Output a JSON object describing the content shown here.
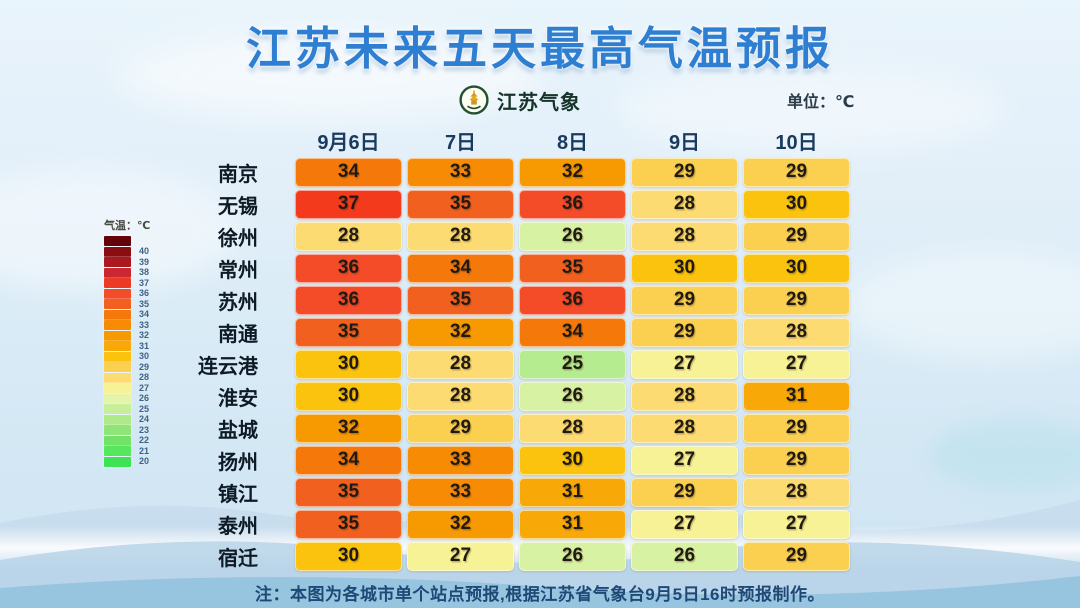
{
  "title": "江苏未来五天最高气温预报",
  "header": {
    "logo_text": "江苏气象",
    "unit_label": "单位：℃"
  },
  "legend": {
    "label": "气温：℃",
    "items": [
      {
        "label": "",
        "color": "#640309"
      },
      {
        "label": "40",
        "color": "#8a0d12"
      },
      {
        "label": "39",
        "color": "#a9191d"
      },
      {
        "label": "38",
        "color": "#ca2730"
      },
      {
        "label": "37",
        "color": "#ec3a24"
      },
      {
        "label": "36",
        "color": "#f24c2b"
      },
      {
        "label": "35",
        "color": "#f2601f"
      },
      {
        "label": "34",
        "color": "#f5790a"
      },
      {
        "label": "33",
        "color": "#f78c04"
      },
      {
        "label": "32",
        "color": "#f79900"
      },
      {
        "label": "31",
        "color": "#f8a907"
      },
      {
        "label": "30",
        "color": "#fbc30d"
      },
      {
        "label": "29",
        "color": "#fbd051"
      },
      {
        "label": "28",
        "color": "#fcdb72"
      },
      {
        "label": "27",
        "color": "#f7f295"
      },
      {
        "label": "26",
        "color": "#e4f4ab"
      },
      {
        "label": "25",
        "color": "#c7ee9b"
      },
      {
        "label": "24",
        "color": "#aeea8a"
      },
      {
        "label": "23",
        "color": "#90e579"
      },
      {
        "label": "22",
        "color": "#72e268"
      },
      {
        "label": "21",
        "color": "#55e75c"
      },
      {
        "label": "20",
        "color": "#3ee355"
      }
    ]
  },
  "palette": {
    "25": "#b6ec90",
    "26": "#d8f2a3",
    "27": "#f7f295",
    "28": "#fcdb72",
    "29": "#fbd051",
    "30": "#fbc30d",
    "31": "#f8a907",
    "32": "#f79900",
    "33": "#f78c04",
    "34": "#f5790a",
    "35": "#f2601f",
    "36": "#f44b28",
    "37": "#f43a1c"
  },
  "table": {
    "date_headers": [
      "9月6日",
      "7日",
      "8日",
      "9日",
      "10日"
    ],
    "rows": [
      {
        "city": "南京",
        "temps": [
          34,
          33,
          32,
          29,
          29
        ]
      },
      {
        "city": "无锡",
        "temps": [
          37,
          35,
          36,
          28,
          30
        ]
      },
      {
        "city": "徐州",
        "temps": [
          28,
          28,
          26,
          28,
          29
        ]
      },
      {
        "city": "常州",
        "temps": [
          36,
          34,
          35,
          30,
          30
        ]
      },
      {
        "city": "苏州",
        "temps": [
          36,
          35,
          36,
          29,
          29
        ]
      },
      {
        "city": "南通",
        "temps": [
          35,
          32,
          34,
          29,
          28
        ]
      },
      {
        "city": "连云港",
        "temps": [
          30,
          28,
          25,
          27,
          27
        ]
      },
      {
        "city": "淮安",
        "temps": [
          30,
          28,
          26,
          28,
          31
        ]
      },
      {
        "city": "盐城",
        "temps": [
          32,
          29,
          28,
          28,
          29
        ]
      },
      {
        "city": "扬州",
        "temps": [
          34,
          33,
          30,
          27,
          29
        ]
      },
      {
        "city": "镇江",
        "temps": [
          35,
          33,
          31,
          29,
          28
        ]
      },
      {
        "city": "泰州",
        "temps": [
          35,
          32,
          31,
          27,
          27
        ]
      },
      {
        "city": "宿迁",
        "temps": [
          30,
          27,
          26,
          26,
          29
        ]
      }
    ]
  },
  "note": "注：本图为各城市单个站点预报,根据江苏省气象台9月5日16时预报制作。",
  "chart_data": {
    "type": "heatmap",
    "title": "江苏未来五天最高气温预报",
    "unit": "℃",
    "columns": [
      "9月6日",
      "7日",
      "8日",
      "9日",
      "10日"
    ],
    "rows": [
      "南京",
      "无锡",
      "徐州",
      "常州",
      "苏州",
      "南通",
      "连云港",
      "淮安",
      "盐城",
      "扬州",
      "镇江",
      "泰州",
      "宿迁"
    ],
    "values": [
      [
        34,
        33,
        32,
        29,
        29
      ],
      [
        37,
        35,
        36,
        28,
        30
      ],
      [
        28,
        28,
        26,
        28,
        29
      ],
      [
        36,
        34,
        35,
        30,
        30
      ],
      [
        36,
        35,
        36,
        29,
        29
      ],
      [
        35,
        32,
        34,
        29,
        28
      ],
      [
        30,
        28,
        25,
        27,
        27
      ],
      [
        30,
        28,
        26,
        28,
        31
      ],
      [
        32,
        29,
        28,
        28,
        29
      ],
      [
        34,
        33,
        30,
        27,
        29
      ],
      [
        35,
        33,
        31,
        29,
        28
      ],
      [
        35,
        32,
        31,
        27,
        27
      ],
      [
        30,
        27,
        26,
        26,
        29
      ]
    ],
    "color_scale": {
      "min": 20,
      "max": 40,
      "low_color": "#3ee355",
      "mid_color": "#fbc30d",
      "high_color": "#8a0d12"
    },
    "legend_position": "left",
    "footnote": "注：本图为各城市单个站点预报,根据江苏省气象台9月5日16时预报制作。"
  }
}
